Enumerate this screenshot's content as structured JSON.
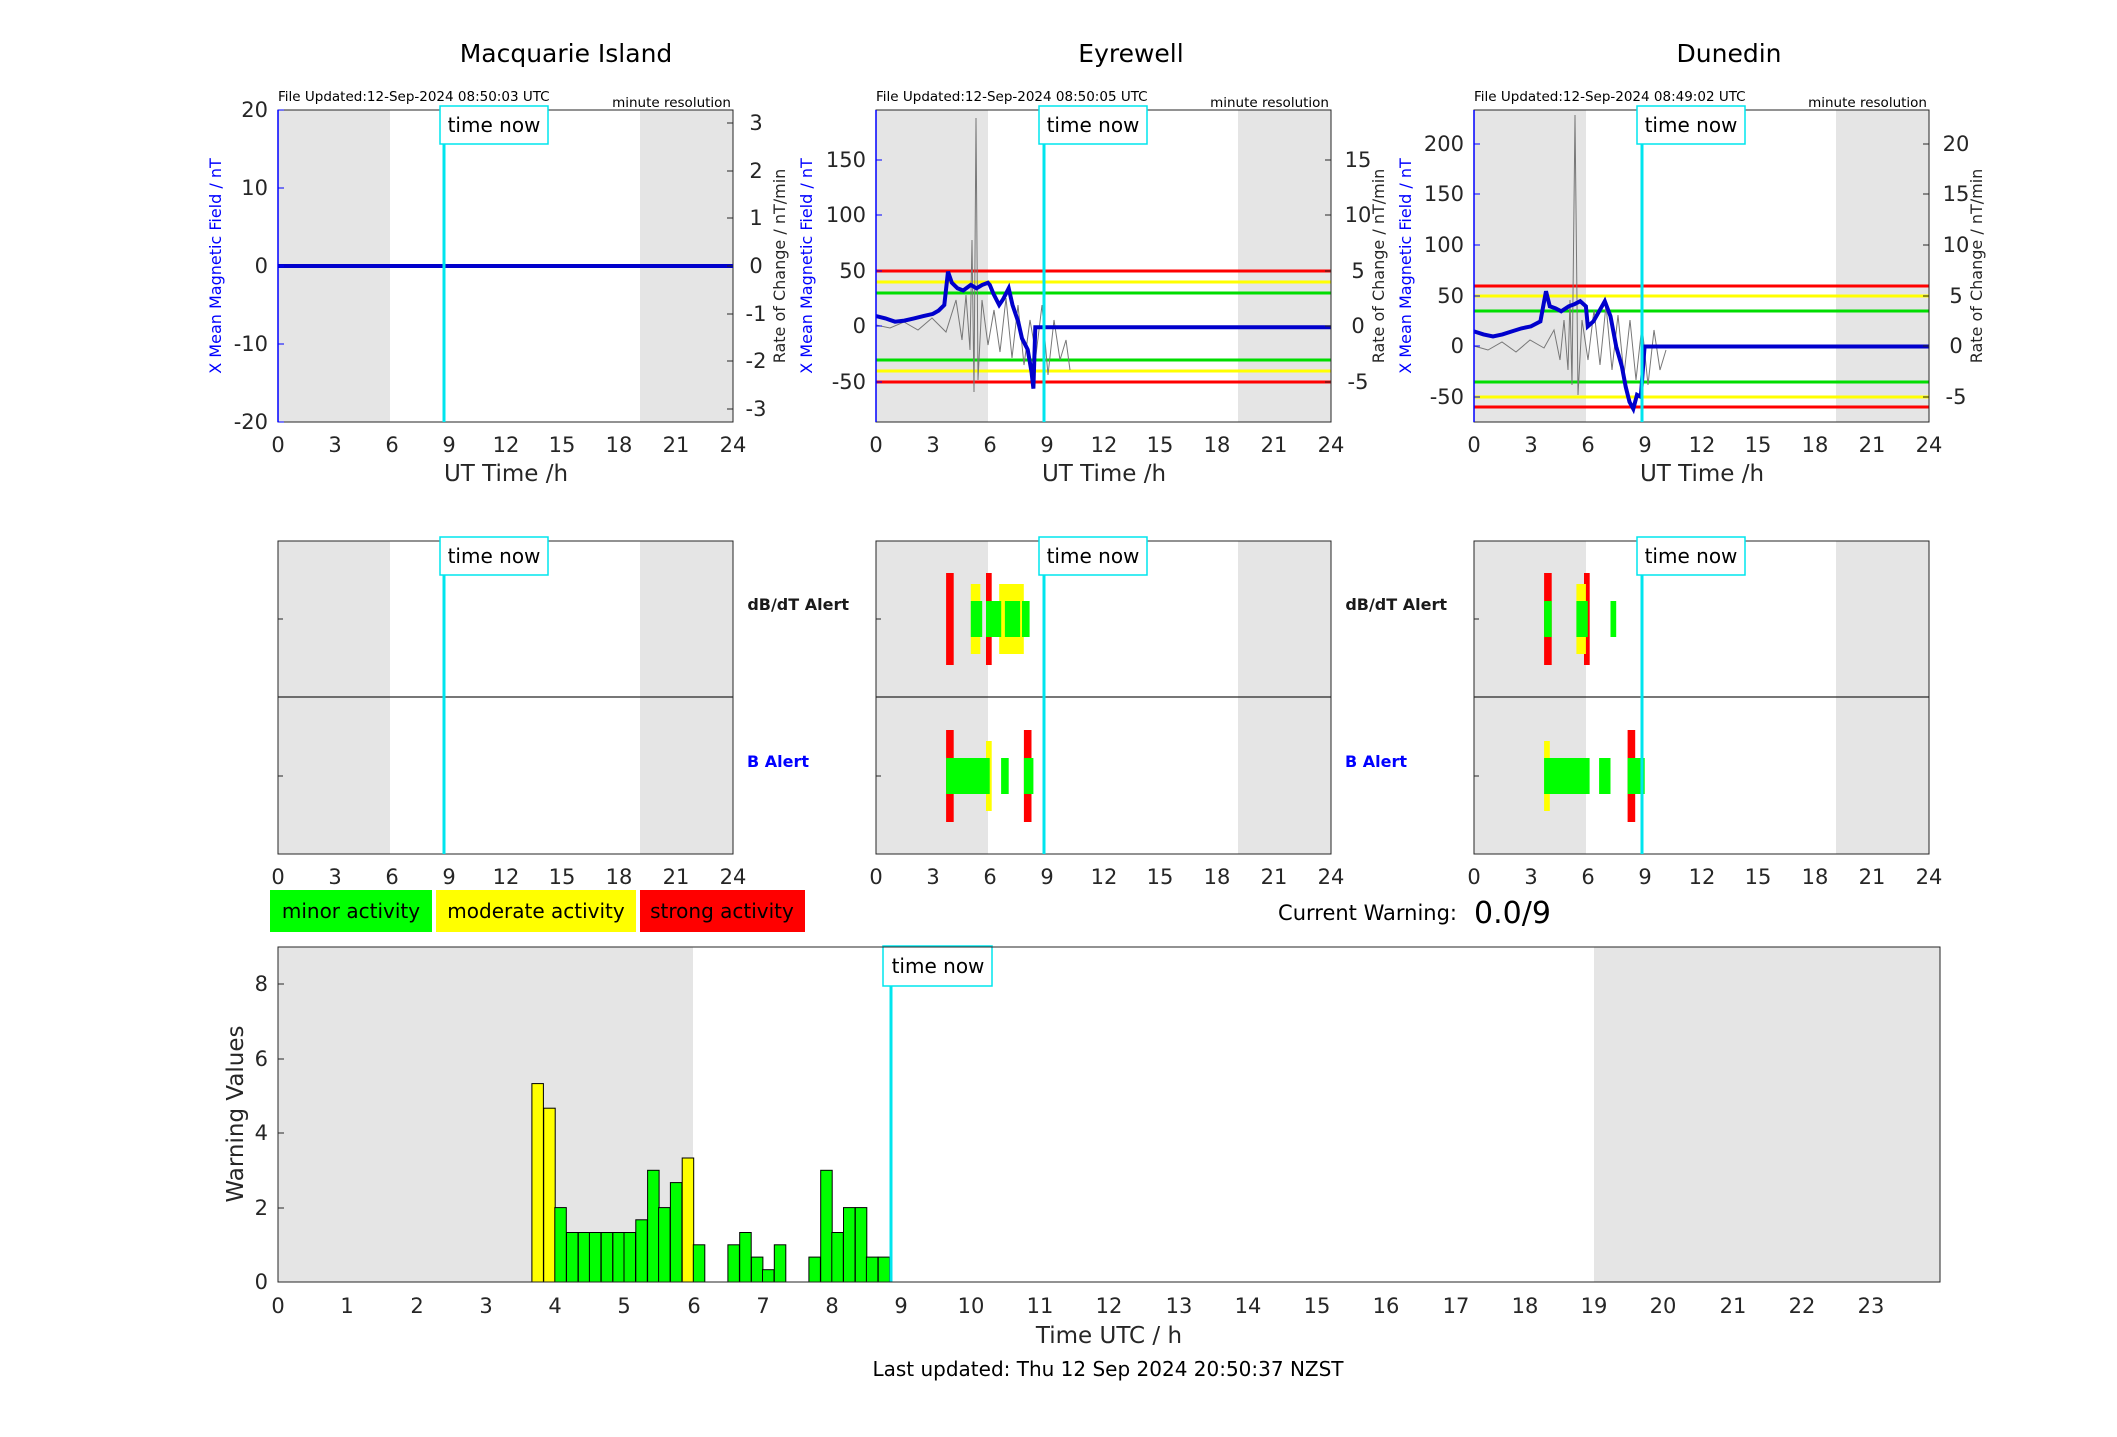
{
  "stations": [
    {
      "title": "Macquarie Island",
      "file_updated": "File Updated:12-Sep-2024 08:50:03 UTC",
      "resolution": "minute resolution",
      "time_now_label": "time now",
      "ylabel_left": "X Mean Magnetic Field / nT",
      "ylabel_right": "Rate of Change / nT/min",
      "xlabel": "UT Time /h",
      "left_ticks": [
        "20",
        "10",
        "0",
        "-10",
        "-20"
      ],
      "right_ticks": [
        "3",
        "2",
        "1",
        "0",
        "-1",
        "-2",
        "-3"
      ],
      "x_ticks": [
        "0",
        "3",
        "6",
        "9",
        "12",
        "15",
        "18",
        "21",
        "24"
      ],
      "dbdt_alert_label": "dB/dT Alert",
      "b_alert_label": "B Alert",
      "alert_x_ticks": [
        "0",
        "3",
        "6",
        "9",
        "12",
        "15",
        "18",
        "21",
        "24"
      ]
    },
    {
      "title": "Eyrewell",
      "file_updated": "File Updated:12-Sep-2024 08:50:05 UTC",
      "resolution": "minute resolution",
      "time_now_label": "time now",
      "ylabel_left": "X Mean Magnetic Field / nT",
      "ylabel_right": "Rate of Change / nT/min",
      "xlabel": "UT Time /h",
      "left_ticks": [
        "150",
        "100",
        "50",
        "0",
        "-50"
      ],
      "right_ticks": [
        "15",
        "10",
        "5",
        "0",
        "-5"
      ],
      "x_ticks": [
        "0",
        "3",
        "6",
        "9",
        "12",
        "15",
        "18",
        "21",
        "24"
      ],
      "dbdt_alert_label": "dB/dT Alert",
      "b_alert_label": "B Alert",
      "alert_x_ticks": [
        "0",
        "3",
        "6",
        "9",
        "12",
        "15",
        "18",
        "21",
        "24"
      ]
    },
    {
      "title": "Dunedin",
      "file_updated": "File Updated:12-Sep-2024 08:49:02 UTC",
      "resolution": "minute resolution",
      "time_now_label": "time now",
      "ylabel_left": "X Mean Magnetic Field / nT",
      "ylabel_right": "Rate of Change / nT/min",
      "xlabel": "UT Time /h",
      "left_ticks": [
        "200",
        "150",
        "100",
        "50",
        "0",
        "-50"
      ],
      "right_ticks": [
        "20",
        "15",
        "10",
        "5",
        "0",
        "-5"
      ],
      "x_ticks": [
        "0",
        "3",
        "6",
        "9",
        "12",
        "15",
        "18",
        "21",
        "24"
      ],
      "dbdt_alert_label": "dB/dT Alert",
      "b_alert_label": "B Alert",
      "alert_x_ticks": [
        "0",
        "3",
        "6",
        "9",
        "12",
        "15",
        "18",
        "21",
        "24"
      ]
    }
  ],
  "legend": {
    "minor": "minor activity",
    "moderate": "moderate activity",
    "strong": "strong activity"
  },
  "current_warning": {
    "label": "Current Warning:",
    "value": "0.0/9"
  },
  "bottom": {
    "time_now_label": "time now",
    "ylabel": "Warning Values",
    "xlabel": "Time UTC / h",
    "y_ticks": [
      "8",
      "6",
      "4",
      "2",
      "0"
    ],
    "x_ticks": [
      "0",
      "1",
      "2",
      "3",
      "4",
      "5",
      "6",
      "7",
      "8",
      "9",
      "10",
      "11",
      "12",
      "13",
      "14",
      "15",
      "16",
      "17",
      "18",
      "19",
      "20",
      "21",
      "22",
      "23"
    ]
  },
  "last_updated": "Last updated: Thu 12 Sep 2024 20:50:37 NZST",
  "colors": {
    "minor": "#00ff00",
    "moderate": "#ffff00",
    "strong": "#ff0000",
    "time_now": "#00e5ee",
    "night_shade": "#e5e5e5",
    "field_line": "#0000cc",
    "axis_blue": "#0000ff"
  },
  "chart_data": [
    {
      "type": "line",
      "title": "Macquarie Island",
      "xlabel": "UT Time /h",
      "ylabel": "X Mean Magnetic Field / nT",
      "xlim": [
        0,
        24
      ],
      "ylim": [
        -20,
        20
      ],
      "y2lim": [
        -3.4,
        3.4
      ],
      "time_now_h": 8.85,
      "night_shade_h": [
        [
          0,
          6
        ],
        [
          19.1,
          24
        ]
      ],
      "series": [
        {
          "x": [
            0,
            24
          ],
          "y": [
            0,
            0
          ]
        }
      ]
    },
    {
      "type": "line",
      "title": "Eyrewell",
      "xlabel": "UT Time /h",
      "ylabel": "X Mean Magnetic Field / nT",
      "xlim": [
        0,
        24
      ],
      "ylim": [
        -85,
        195
      ],
      "y2lim": [
        -8.5,
        19.5
      ],
      "time_now_h": 8.85,
      "night_shade_h": [
        [
          0,
          6
        ],
        [
          19.1,
          24
        ]
      ],
      "threshold_lines_nT": [
        {
          "level": "strong",
          "values": [
            50,
            -50
          ]
        },
        {
          "level": "moderate",
          "values": [
            40,
            -40
          ]
        },
        {
          "level": "minor",
          "values": [
            30,
            -30
          ]
        }
      ],
      "series": [
        {
          "x": [
            0,
            0.5,
            1,
            1.5,
            2,
            2.5,
            3,
            3.3,
            3.6,
            3.8,
            4,
            4.3,
            4.6,
            5,
            5.3,
            5.6,
            5.9,
            6,
            6.2,
            6.5,
            6.7,
            7,
            7.2,
            7.5,
            7.7,
            8,
            8.2,
            8.3,
            8.4,
            8.6,
            24
          ],
          "y": [
            10,
            8,
            5,
            6,
            8,
            10,
            12,
            15,
            20,
            50,
            40,
            35,
            33,
            38,
            35,
            38,
            40,
            38,
            30,
            20,
            25,
            35,
            20,
            5,
            -10,
            -20,
            -40,
            -55,
            0,
            0,
            0
          ]
        }
      ]
    },
    {
      "type": "line",
      "title": "Dunedin",
      "xlabel": "UT Time /h",
      "ylabel": "X Mean Magnetic Field / nT",
      "xlim": [
        0,
        24
      ],
      "ylim": [
        -75,
        235
      ],
      "y2lim": [
        -7.5,
        23.5
      ],
      "time_now_h": 8.85,
      "night_shade_h": [
        [
          0,
          6
        ],
        [
          19.1,
          24
        ]
      ],
      "threshold_lines_nT": [
        {
          "level": "strong",
          "values": [
            60,
            -60
          ]
        },
        {
          "level": "moderate",
          "values": [
            50,
            -50
          ]
        },
        {
          "level": "minor",
          "values": [
            35,
            -35
          ]
        }
      ],
      "series": [
        {
          "x": [
            0,
            0.5,
            1,
            1.5,
            2,
            2.5,
            3,
            3.5,
            3.8,
            4,
            4.3,
            4.6,
            5,
            5.3,
            5.6,
            5.9,
            6,
            6.3,
            6.6,
            6.9,
            7.2,
            7.5,
            7.8,
            8,
            8.2,
            8.4,
            8.6,
            8.8,
            9,
            24
          ],
          "y": [
            15,
            12,
            10,
            12,
            15,
            18,
            20,
            25,
            55,
            40,
            38,
            35,
            40,
            42,
            45,
            40,
            20,
            25,
            35,
            45,
            30,
            0,
            -20,
            -40,
            -55,
            -62,
            -48,
            -50,
            0,
            0
          ]
        }
      ]
    },
    {
      "type": "bar",
      "xlabel": "Time UTC / h",
      "ylabel": "Warning Values",
      "xlim": [
        0,
        24
      ],
      "ylim": [
        0,
        9
      ],
      "time_now_h": 8.85,
      "night_shade_h": [
        [
          0,
          6
        ],
        [
          19,
          24
        ]
      ],
      "bar_width_h": 0.1667,
      "bars": [
        {
          "x": 3.75,
          "value": 5.33,
          "level": "moderate"
        },
        {
          "x": 3.92,
          "value": 4.67,
          "level": "moderate"
        },
        {
          "x": 4.08,
          "value": 2.0,
          "level": "minor"
        },
        {
          "x": 4.25,
          "value": 1.33,
          "level": "minor"
        },
        {
          "x": 4.42,
          "value": 1.33,
          "level": "minor"
        },
        {
          "x": 4.58,
          "value": 1.33,
          "level": "minor"
        },
        {
          "x": 4.75,
          "value": 1.33,
          "level": "minor"
        },
        {
          "x": 4.92,
          "value": 1.33,
          "level": "minor"
        },
        {
          "x": 5.08,
          "value": 1.33,
          "level": "minor"
        },
        {
          "x": 5.25,
          "value": 1.67,
          "level": "minor"
        },
        {
          "x": 5.42,
          "value": 3.0,
          "level": "minor"
        },
        {
          "x": 5.58,
          "value": 2.0,
          "level": "minor"
        },
        {
          "x": 5.75,
          "value": 2.67,
          "level": "minor"
        },
        {
          "x": 5.92,
          "value": 3.33,
          "level": "moderate"
        },
        {
          "x": 6.08,
          "value": 1.0,
          "level": "minor"
        },
        {
          "x": 6.58,
          "value": 1.0,
          "level": "minor"
        },
        {
          "x": 6.75,
          "value": 1.33,
          "level": "minor"
        },
        {
          "x": 6.92,
          "value": 0.67,
          "level": "minor"
        },
        {
          "x": 7.08,
          "value": 0.33,
          "level": "minor"
        },
        {
          "x": 7.25,
          "value": 1.0,
          "level": "minor"
        },
        {
          "x": 7.75,
          "value": 0.67,
          "level": "minor"
        },
        {
          "x": 7.92,
          "value": 3.0,
          "level": "minor"
        },
        {
          "x": 8.08,
          "value": 1.33,
          "level": "minor"
        },
        {
          "x": 8.25,
          "value": 2.0,
          "level": "minor"
        },
        {
          "x": 8.42,
          "value": 2.0,
          "level": "minor"
        },
        {
          "x": 8.58,
          "value": 0.67,
          "level": "minor"
        },
        {
          "x": 8.75,
          "value": 0.67,
          "level": "minor"
        }
      ]
    }
  ],
  "alert_data": [
    {
      "station": "Macquarie Island",
      "dbdt": [],
      "b": []
    },
    {
      "station": "Eyrewell",
      "dbdt": [
        {
          "h0": 3.7,
          "h1": 4.1,
          "level": "strong"
        },
        {
          "h0": 5.8,
          "h1": 6.1,
          "level": "strong"
        },
        {
          "h0": 5.0,
          "h1": 5.5,
          "level": "moderate"
        },
        {
          "h0": 6.5,
          "h1": 7.8,
          "level": "moderate"
        },
        {
          "h0": 5.0,
          "h1": 5.6,
          "level": "minor"
        },
        {
          "h0": 5.8,
          "h1": 6.6,
          "level": "minor"
        },
        {
          "h0": 6.8,
          "h1": 7.6,
          "level": "minor"
        },
        {
          "h0": 7.7,
          "h1": 8.1,
          "level": "minor"
        }
      ],
      "b": [
        {
          "h0": 3.7,
          "h1": 4.1,
          "level": "strong"
        },
        {
          "h0": 7.8,
          "h1": 8.2,
          "level": "strong"
        },
        {
          "h0": 5.8,
          "h1": 6.1,
          "level": "moderate"
        },
        {
          "h0": 3.7,
          "h1": 6.0,
          "level": "minor"
        },
        {
          "h0": 6.6,
          "h1": 7.0,
          "level": "minor"
        },
        {
          "h0": 7.8,
          "h1": 8.3,
          "level": "minor"
        }
      ]
    },
    {
      "station": "Dunedin",
      "dbdt": [
        {
          "h0": 3.7,
          "h1": 4.1,
          "level": "strong"
        },
        {
          "h0": 5.8,
          "h1": 6.1,
          "level": "strong"
        },
        {
          "h0": 5.4,
          "h1": 5.9,
          "level": "moderate"
        },
        {
          "h0": 3.7,
          "h1": 4.1,
          "level": "minor"
        },
        {
          "h0": 5.4,
          "h1": 6.0,
          "level": "minor"
        },
        {
          "h0": 7.2,
          "h1": 7.5,
          "level": "minor"
        }
      ],
      "b": [
        {
          "h0": 3.7,
          "h1": 4.0,
          "level": "moderate"
        },
        {
          "h0": 8.1,
          "h1": 8.5,
          "level": "strong"
        },
        {
          "h0": 3.7,
          "h1": 6.1,
          "level": "minor"
        },
        {
          "h0": 6.6,
          "h1": 7.2,
          "level": "minor"
        },
        {
          "h0": 8.1,
          "h1": 9.0,
          "level": "minor"
        }
      ]
    }
  ]
}
